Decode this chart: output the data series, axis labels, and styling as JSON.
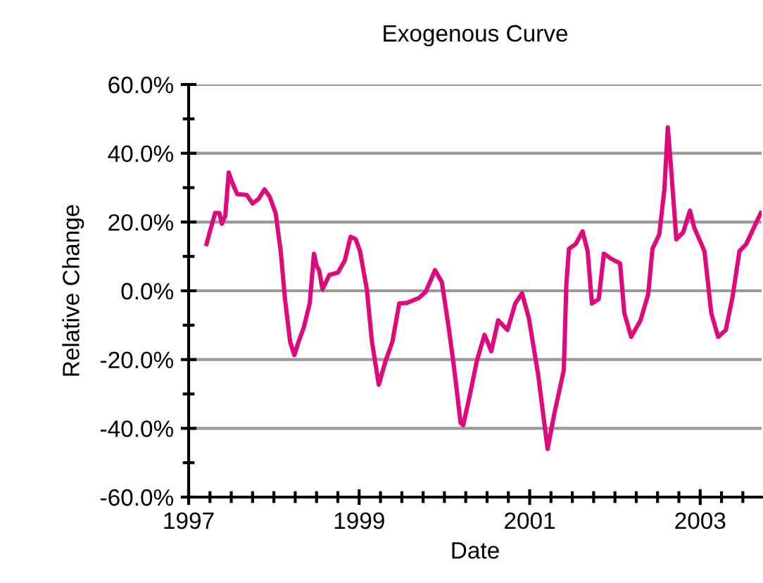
{
  "chart_data": {
    "type": "line",
    "title": "Exogenous Curve",
    "xlabel": "Date",
    "ylabel": "Relative Change",
    "xlim": [
      1997.0,
      2003.72
    ],
    "ylim": [
      -60,
      60
    ],
    "xticks": [
      {
        "value": 1997,
        "label": "1997"
      },
      {
        "value": 1997.25,
        "label": null
      },
      {
        "value": 1997.5,
        "label": null
      },
      {
        "value": 1997.75,
        "label": null
      },
      {
        "value": 1998,
        "label": null
      },
      {
        "value": 1998.25,
        "label": null
      },
      {
        "value": 1998.5,
        "label": null
      },
      {
        "value": 1998.75,
        "label": null
      },
      {
        "value": 1999,
        "label": "1999"
      },
      {
        "value": 1999.25,
        "label": null
      },
      {
        "value": 1999.5,
        "label": null
      },
      {
        "value": 1999.75,
        "label": null
      },
      {
        "value": 2000,
        "label": null
      },
      {
        "value": 2000.25,
        "label": null
      },
      {
        "value": 2000.5,
        "label": null
      },
      {
        "value": 2000.75,
        "label": null
      },
      {
        "value": 2001,
        "label": "2001"
      },
      {
        "value": 2001.25,
        "label": null
      },
      {
        "value": 2001.5,
        "label": null
      },
      {
        "value": 2001.75,
        "label": null
      },
      {
        "value": 2002,
        "label": null
      },
      {
        "value": 2002.25,
        "label": null
      },
      {
        "value": 2002.5,
        "label": null
      },
      {
        "value": 2002.75,
        "label": null
      },
      {
        "value": 2003,
        "label": "2003"
      },
      {
        "value": 2003.25,
        "label": null
      },
      {
        "value": 2003.5,
        "label": null
      }
    ],
    "yticks": [
      {
        "value": -60,
        "label": "-60.0%"
      },
      {
        "value": -50,
        "label": null
      },
      {
        "value": -40,
        "label": "-40.0%"
      },
      {
        "value": -30,
        "label": null
      },
      {
        "value": -20,
        "label": "-20.0%"
      },
      {
        "value": -10,
        "label": null
      },
      {
        "value": 0,
        "label": "0.0%"
      },
      {
        "value": 10,
        "label": null
      },
      {
        "value": 20,
        "label": "20.0%"
      },
      {
        "value": 30,
        "label": null
      },
      {
        "value": 40,
        "label": "40.0%"
      },
      {
        "value": 50,
        "label": null
      },
      {
        "value": 60,
        "label": "60.0%"
      }
    ],
    "grid": "y",
    "legend": false,
    "marker": "none",
    "line_style": "solid",
    "series": [
      {
        "color": "#e0087a",
        "x": [
          1997.21,
          1997.24,
          1997.31,
          1997.36,
          1997.39,
          1997.43,
          1997.47,
          1997.51,
          1997.57,
          1997.68,
          1997.75,
          1997.82,
          1997.89,
          1997.95,
          1998.02,
          1998.08,
          1998.13,
          1998.19,
          1998.24,
          1998.29,
          1998.35,
          1998.42,
          1998.47,
          1998.5,
          1998.53,
          1998.57,
          1998.65,
          1998.75,
          1998.83,
          1998.9,
          1998.96,
          1999.01,
          1999.09,
          1999.15,
          1999.23,
          1999.31,
          1999.39,
          1999.47,
          1999.56,
          1999.7,
          1999.78,
          1999.89,
          1999.97,
          2000.05,
          2000.11,
          2000.19,
          2000.22,
          2000.3,
          2000.38,
          2000.47,
          2000.55,
          2000.63,
          2000.74,
          2000.83,
          2000.91,
          2000.99,
          2001.1,
          2001.21,
          2001.29,
          2001.4,
          2001.43,
          2001.46,
          2001.54,
          2001.62,
          2001.68,
          2001.73,
          2001.81,
          2001.87,
          2001.95,
          2002.06,
          2002.11,
          2002.19,
          2002.3,
          2002.39,
          2002.44,
          2002.52,
          2002.58,
          2002.62,
          2002.66,
          2002.72,
          2002.8,
          2002.88,
          2002.93,
          2003.05,
          2003.13,
          2003.21,
          2003.3,
          2003.38,
          2003.46,
          2003.54,
          2003.63,
          2003.71
        ],
        "values": [
          13.6,
          16.4,
          22.6,
          22.6,
          19.5,
          21.9,
          34.4,
          31.6,
          28.1,
          27.9,
          25.4,
          26.7,
          29.5,
          27.4,
          22.6,
          11.5,
          -2.4,
          -14.8,
          -18.7,
          -14.8,
          -10.7,
          -3.7,
          10.8,
          7.3,
          6.0,
          0.4,
          4.6,
          5.3,
          8.7,
          15.7,
          15.0,
          11.5,
          0.4,
          -14.8,
          -27.3,
          -20.4,
          -14.8,
          -3.7,
          -3.5,
          -2.1,
          -0.3,
          6.0,
          2.5,
          -10.7,
          -21.8,
          -38.4,
          -39.1,
          -30.1,
          -20.4,
          -12.8,
          -17.6,
          -8.6,
          -11.4,
          -3.7,
          -0.7,
          -7.9,
          -24.5,
          -46.0,
          -35.6,
          -23.1,
          1.8,
          12.2,
          13.6,
          17.3,
          11.5,
          -3.7,
          -2.4,
          10.8,
          9.4,
          8.0,
          -6.5,
          -13.4,
          -8.6,
          -1.0,
          12.2,
          16.4,
          29.5,
          47.5,
          35.1,
          15.0,
          17.0,
          23.3,
          18.4,
          11.5,
          -6.5,
          -13.4,
          -11.4,
          -1.7,
          11.5,
          13.6,
          18.4,
          22.6
        ]
      }
    ]
  }
}
